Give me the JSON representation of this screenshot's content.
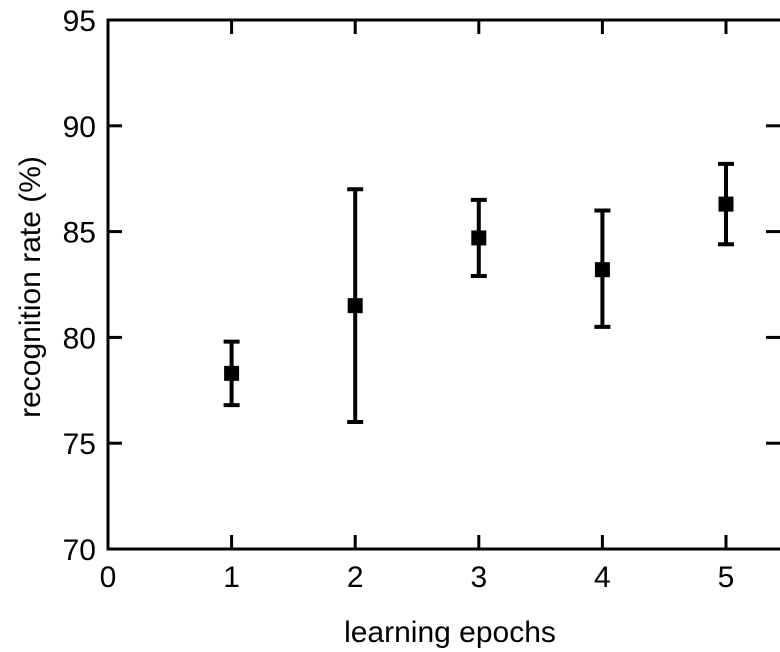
{
  "chart_data": {
    "type": "scatter",
    "title": "",
    "xlabel": "learning epochs",
    "ylabel": "recognition rate (%)",
    "xlim": [
      0,
      5.4
    ],
    "ylim": [
      70,
      95
    ],
    "x_ticks": [
      "0",
      "1",
      "2",
      "3",
      "4",
      "5"
    ],
    "y_ticks": [
      "70",
      "75",
      "80",
      "85",
      "90",
      "95"
    ],
    "grid": false,
    "legend": "none",
    "marker": "square",
    "color": "#000000",
    "points": [
      {
        "x": 1,
        "y": 78.3,
        "err_low": 76.8,
        "err_high": 79.8
      },
      {
        "x": 2,
        "y": 81.5,
        "err_low": 76.0,
        "err_high": 87.0
      },
      {
        "x": 3,
        "y": 84.7,
        "err_low": 82.9,
        "err_high": 86.5
      },
      {
        "x": 4,
        "y": 83.2,
        "err_low": 80.5,
        "err_high": 86.0
      },
      {
        "x": 5,
        "y": 86.3,
        "err_low": 84.4,
        "err_high": 88.2
      }
    ]
  }
}
